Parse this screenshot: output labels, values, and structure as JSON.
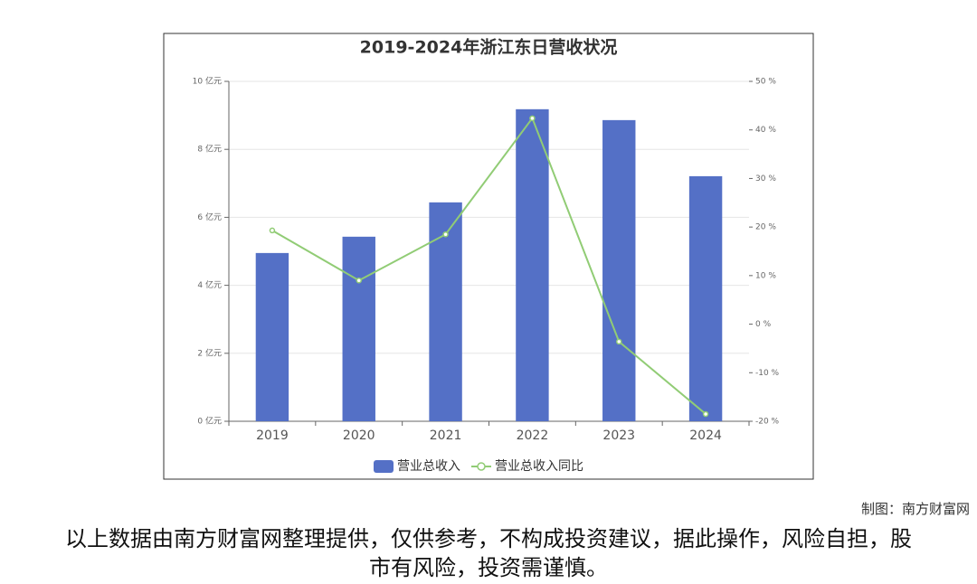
{
  "chart_data": {
    "type": "bar",
    "title": "2019-2024年浙江东日营收状况",
    "categories": [
      "2019",
      "2020",
      "2021",
      "2022",
      "2023",
      "2024"
    ],
    "series": [
      {
        "name": "营业总收入",
        "type": "bar",
        "color": "#5470c6",
        "values": [
          4.95,
          5.43,
          6.44,
          9.18,
          8.86,
          7.21
        ]
      },
      {
        "name": "营业总收入同比",
        "type": "line",
        "axis": "y2",
        "color": "#91cc75",
        "values": [
          19.3,
          9.0,
          18.5,
          42.4,
          -3.6,
          -18.5
        ]
      }
    ],
    "ylim": [
      0,
      10
    ],
    "yticks": [
      {
        "value": 0,
        "label": "0 亿元"
      },
      {
        "value": 2,
        "label": "2 亿元"
      },
      {
        "value": 4,
        "label": "4 亿元"
      },
      {
        "value": 6,
        "label": "6 亿元"
      },
      {
        "value": 8,
        "label": "8 亿元"
      },
      {
        "value": 10,
        "label": "10 亿元"
      }
    ],
    "y2lim": [
      -20,
      50
    ],
    "y2ticks": [
      {
        "value": -20,
        "label": "-20 %"
      },
      {
        "value": -10,
        "label": "-10 %"
      },
      {
        "value": 0,
        "label": "0 %"
      },
      {
        "value": 10,
        "label": "10 %"
      },
      {
        "value": 20,
        "label": "20 %"
      },
      {
        "value": 30,
        "label": "30 %"
      },
      {
        "value": 40,
        "label": "40 %"
      },
      {
        "value": 50,
        "label": "50 %"
      }
    ],
    "grid": true
  },
  "credit": "制图：南方财富网",
  "disclaimer": "以上数据由南方财富网整理提供，仅供参考，不构成投资建议，据此操作，风险自担，股市有风险，投资需谨慎。"
}
